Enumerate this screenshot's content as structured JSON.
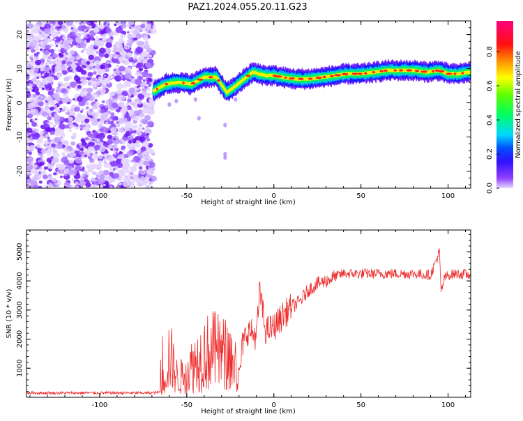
{
  "title": "PAZ1.2024.055.20.11.G23",
  "colors": {
    "snr_line": "#ee2a2a",
    "axis": "#000000"
  },
  "chart_data": [
    {
      "type": "heatmap",
      "xlabel": "Height of straight line (km)",
      "ylabel": "Frequency (Hz)",
      "xlim": [
        -142,
        113
      ],
      "ylim": [
        -25,
        24
      ],
      "xticks": [
        -100,
        -50,
        0,
        50,
        100
      ],
      "yticks": [
        -20,
        -10,
        0,
        10,
        20
      ],
      "noise_region_x": [
        -142,
        -69
      ],
      "ridge": {
        "x": [
          -69,
          -62,
          -55,
          -47,
          -40,
          -33,
          -27,
          -22,
          -17,
          -12,
          -9,
          -4,
          0,
          5,
          12,
          20,
          28,
          35,
          42,
          50,
          58,
          65,
          72,
          80,
          88,
          95,
          100,
          105,
          113
        ],
        "y": [
          3.5,
          5.5,
          6.0,
          5.5,
          7.5,
          7.5,
          3.0,
          5.0,
          7.0,
          9.0,
          8.5,
          8.0,
          8.0,
          7.5,
          7.0,
          7.0,
          7.5,
          8.0,
          8.5,
          8.5,
          9.0,
          9.5,
          9.5,
          9.5,
          9.0,
          9.5,
          8.5,
          8.5,
          9.0
        ]
      },
      "colorbar": {
        "label": "Normalized spectral amplitude",
        "ticks": [
          "0.0",
          "0.2",
          "0.4",
          "0.6",
          "0.8"
        ],
        "range": [
          0,
          0.98
        ]
      }
    },
    {
      "type": "line",
      "xlabel": "Height of straight line (km)",
      "ylabel": "SNR (10 * v/v)",
      "xlim": [
        -142,
        113
      ],
      "ylim": [
        0,
        5750
      ],
      "xticks": [
        -100,
        -50,
        0,
        50,
        100
      ],
      "yticks": [
        1000,
        2000,
        3000,
        4000,
        5000
      ],
      "series": [
        {
          "x": [
            -142,
            -100,
            -70,
            -65,
            -62,
            -60,
            -55,
            -50,
            -45,
            -40,
            -35,
            -30,
            -25,
            -20,
            -18,
            -15,
            -10,
            -8,
            -5,
            0,
            5,
            10,
            15,
            20,
            25,
            30,
            35,
            40,
            50,
            60,
            70,
            80,
            90,
            95,
            96,
            98,
            100,
            105,
            113
          ],
          "y": [
            150,
            150,
            150,
            180,
            900,
            1500,
            600,
            900,
            1200,
            1500,
            1600,
            1500,
            1400,
            600,
            1800,
            2300,
            2100,
            3700,
            2300,
            2400,
            2800,
            3100,
            3300,
            3700,
            3900,
            4000,
            4150,
            4250,
            4250,
            4250,
            4250,
            4250,
            4200,
            5000,
            3600,
            4100,
            4200,
            4250,
            4200
          ]
        }
      ]
    }
  ]
}
